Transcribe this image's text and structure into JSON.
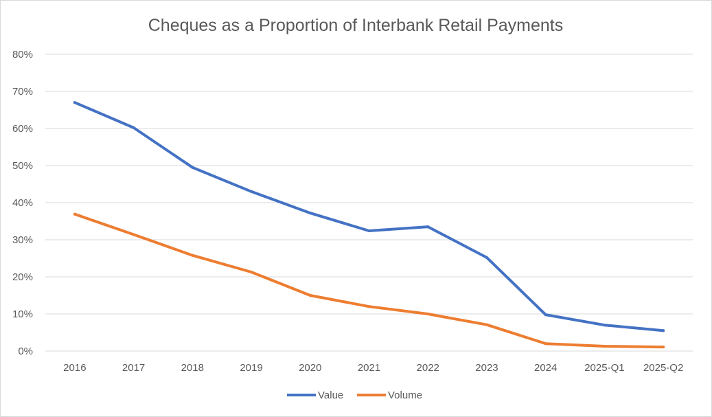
{
  "chart_data": {
    "type": "line",
    "title": "Cheques as a Proportion of Interbank Retail Payments",
    "xlabel": "",
    "ylabel": "",
    "categories": [
      "2016",
      "2017",
      "2018",
      "2019",
      "2020",
      "2021",
      "2022",
      "2023",
      "2024",
      "2025-Q1",
      "2025-Q2"
    ],
    "ylim": [
      0,
      80
    ],
    "yticks": [
      0,
      10,
      20,
      30,
      40,
      50,
      60,
      70,
      80
    ],
    "ytick_labels": [
      "0%",
      "10%",
      "20%",
      "30%",
      "40%",
      "50%",
      "60%",
      "70%",
      "80%"
    ],
    "grid": true,
    "legend_position": "bottom",
    "series": [
      {
        "name": "Value",
        "color": "#4472c4",
        "values": [
          67.0,
          60.2,
          49.5,
          43.0,
          37.2,
          32.4,
          33.5,
          25.2,
          9.8,
          7.0,
          5.5
        ]
      },
      {
        "name": "Volume",
        "color": "#ed7d31",
        "values": [
          36.9,
          31.4,
          25.8,
          21.3,
          15.0,
          12.0,
          10.0,
          7.1,
          2.0,
          1.3,
          1.1
        ]
      }
    ]
  }
}
